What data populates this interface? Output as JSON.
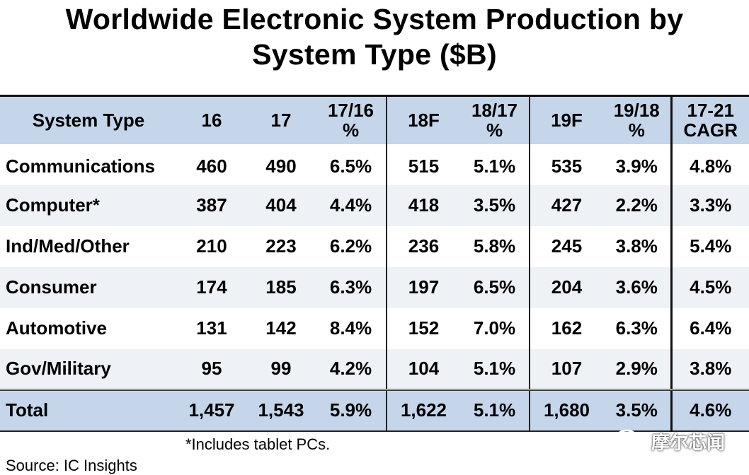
{
  "title_line1": "Worldwide Electronic System Production by",
  "title_line2": "System Type ($B)",
  "chart_data": {
    "type": "table",
    "columns": [
      "System Type",
      "16",
      "17",
      "17/16 %",
      "18F",
      "18/17 %",
      "19F",
      "19/18 %",
      "17-21 CAGR"
    ],
    "header_lines": [
      [
        "System Type"
      ],
      [
        "16"
      ],
      [
        "17"
      ],
      [
        "17/16",
        "%"
      ],
      [
        "18F"
      ],
      [
        "18/17",
        "%"
      ],
      [
        "19F"
      ],
      [
        "19/18",
        "%"
      ],
      [
        "17-21",
        "CAGR"
      ]
    ],
    "rows": [
      [
        "Communications",
        "460",
        "490",
        "6.5%",
        "515",
        "5.1%",
        "535",
        "3.9%",
        "4.8%"
      ],
      [
        "Computer*",
        "387",
        "404",
        "4.4%",
        "418",
        "3.5%",
        "427",
        "2.2%",
        "3.3%"
      ],
      [
        "Ind/Med/Other",
        "210",
        "223",
        "6.2%",
        "236",
        "5.8%",
        "245",
        "3.8%",
        "5.4%"
      ],
      [
        "Consumer",
        "174",
        "185",
        "6.3%",
        "197",
        "6.5%",
        "204",
        "3.6%",
        "4.5%"
      ],
      [
        "Automotive",
        "131",
        "142",
        "8.4%",
        "152",
        "7.0%",
        "162",
        "6.3%",
        "6.4%"
      ],
      [
        "Gov/Military",
        "95",
        "99",
        "4.2%",
        "104",
        "5.1%",
        "107",
        "2.9%",
        "3.8%"
      ]
    ],
    "total": [
      "Total",
      "1,457",
      "1,543",
      "5.9%",
      "1,622",
      "5.1%",
      "1,680",
      "3.5%",
      "4.6%"
    ]
  },
  "footnote": "*Includes tablet PCs.",
  "source": "Source: IC Insights",
  "watermark": "摩尔芯闻",
  "watermark_icon": "wechat-icon",
  "colors": {
    "header_bg": "#c5d6ea",
    "alt_row_bg": "#eef1f5"
  }
}
